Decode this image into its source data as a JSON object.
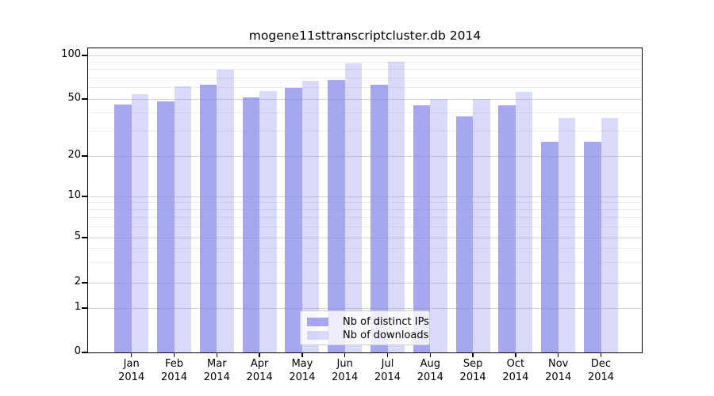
{
  "chart_data": {
    "type": "bar",
    "title": "mogene11sttranscriptcluster.db 2014",
    "categories": [
      "Jan",
      "Feb",
      "Mar",
      "Apr",
      "May",
      "Jun",
      "Jul",
      "Aug",
      "Sep",
      "Oct",
      "Nov",
      "Dec"
    ],
    "year_label": "2014",
    "series": [
      {
        "name": "Nb of distinct IPs",
        "values": [
          46,
          48,
          63,
          51,
          60,
          68,
          63,
          45,
          38,
          45,
          25,
          25
        ],
        "color": "rgba(137,137,235,0.75)"
      },
      {
        "name": "Nb of downloads",
        "values": [
          54,
          61,
          80,
          57,
          67,
          88,
          90,
          50,
          50,
          56,
          37,
          37
        ],
        "color": "rgba(137,137,235,0.32)"
      }
    ],
    "y_axis": {
      "scale": "log-like",
      "ticks": [
        0,
        1,
        2,
        5,
        10,
        20,
        50,
        100
      ],
      "minor_ticks": [
        3,
        4,
        6,
        7,
        8,
        9,
        30,
        40,
        60,
        70,
        80,
        90
      ],
      "range": [
        0,
        114
      ]
    },
    "x_axis": {
      "label_lines": 2
    },
    "legend": {
      "position": "bottom-center",
      "entries": [
        "Nb of distinct IPs",
        "Nb of downloads"
      ]
    },
    "grid": "on",
    "colors": {
      "bar_base": "#8989eb",
      "major_grid": "#d4d4d4",
      "minor_grid": "#ebebeb",
      "spine": "#000000",
      "text": "#000000",
      "legend_border": "#cccccc"
    }
  }
}
